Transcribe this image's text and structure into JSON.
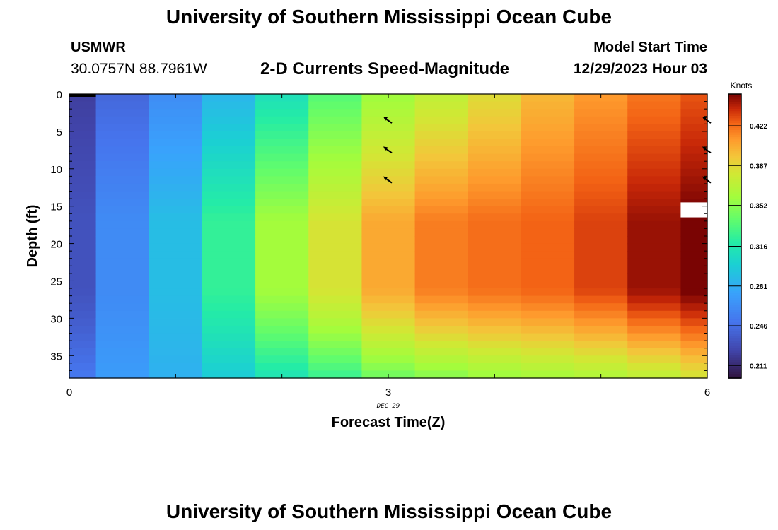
{
  "header": {
    "title": "University of Southern Mississippi Ocean Cube",
    "station": "USMWR",
    "coordinates": "30.0757N  88.7961W",
    "subtitle": "2-D Currents Speed-Magnitude",
    "model_start_label": "Model Start Time",
    "model_start_value": "12/29/2023 Hour 03"
  },
  "footer": {
    "title": "University of Southern Mississippi Ocean Cube"
  },
  "chart_data": {
    "type": "heatmap",
    "xlabel": "Forecast Time(Z)",
    "ylabel": "Depth (ft)",
    "x_ticks": [
      0,
      3,
      6
    ],
    "x_date_label": "DEC 29",
    "y_ticks": [
      0,
      5,
      10,
      15,
      20,
      25,
      30,
      35
    ],
    "xlim": [
      0,
      6
    ],
    "ylim": [
      0,
      38
    ],
    "y_inverted": true,
    "colorbar": {
      "label": "Knots",
      "range": [
        0.2,
        0.45
      ],
      "ticks": [
        0.211,
        0.246,
        0.281,
        0.316,
        0.352,
        0.387,
        0.422
      ],
      "colormap": "turbo"
    },
    "columns": [
      {
        "x_start": 0.0,
        "x_end": 0.25,
        "top": 0.222,
        "mid": 0.232,
        "bottom": 0.252
      },
      {
        "x_start": 0.25,
        "x_end": 0.75,
        "top": 0.243,
        "mid": 0.262,
        "bottom": 0.272
      },
      {
        "x_start": 0.75,
        "x_end": 1.25,
        "top": 0.263,
        "mid": 0.29,
        "bottom": 0.283
      },
      {
        "x_start": 1.25,
        "x_end": 1.75,
        "top": 0.286,
        "mid": 0.325,
        "bottom": 0.298
      },
      {
        "x_start": 1.75,
        "x_end": 2.25,
        "top": 0.311,
        "mid": 0.36,
        "bottom": 0.313
      },
      {
        "x_start": 2.25,
        "x_end": 2.75,
        "top": 0.336,
        "mid": 0.382,
        "bottom": 0.326
      },
      {
        "x_start": 2.75,
        "x_end": 3.25,
        "top": 0.358,
        "mid": 0.405,
        "bottom": 0.343
      },
      {
        "x_start": 3.25,
        "x_end": 3.75,
        "top": 0.372,
        "mid": 0.418,
        "bottom": 0.35
      },
      {
        "x_start": 3.75,
        "x_end": 4.25,
        "top": 0.385,
        "mid": 0.422,
        "bottom": 0.356
      },
      {
        "x_start": 4.25,
        "x_end": 4.75,
        "top": 0.4,
        "mid": 0.425,
        "bottom": 0.36
      },
      {
        "x_start": 4.75,
        "x_end": 5.25,
        "top": 0.41,
        "mid": 0.432,
        "bottom": 0.364
      },
      {
        "x_start": 5.25,
        "x_end": 5.75,
        "top": 0.42,
        "mid": 0.445,
        "bottom": 0.37
      },
      {
        "x_start": 5.75,
        "x_end": 6.0,
        "top": 0.428,
        "mid": 0.452,
        "bottom": 0.38
      }
    ],
    "missing_cells": [
      {
        "x_start": 5.75,
        "x_end": 6.0,
        "depth_start": 14.5,
        "depth_end": 16.5
      }
    ],
    "vectors": [
      {
        "x": 3,
        "depth": 3.5,
        "direction": "northwest"
      },
      {
        "x": 3,
        "depth": 7.5,
        "direction": "northwest"
      },
      {
        "x": 3,
        "depth": 11.5,
        "direction": "northwest"
      },
      {
        "x": 6,
        "depth": 3.5,
        "direction": "northwest"
      },
      {
        "x": 6,
        "depth": 7.5,
        "direction": "northwest"
      },
      {
        "x": 6,
        "depth": 11.5,
        "direction": "northwest"
      }
    ]
  }
}
